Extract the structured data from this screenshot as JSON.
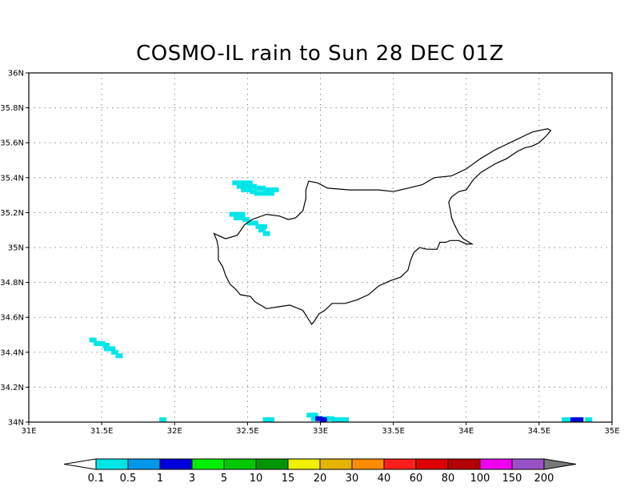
{
  "title": "COSMO-IL rain to Sun 28 DEC 01Z",
  "map": {
    "lon_range": [
      31,
      35
    ],
    "lat_range": [
      34,
      36
    ],
    "grid": true,
    "lon_ticks": [
      "31E",
      "31.5E",
      "32E",
      "32.5E",
      "33E",
      "33.5E",
      "34E",
      "34.5E",
      "35E"
    ],
    "lat_ticks": [
      "34N",
      "34.2N",
      "34.4N",
      "34.6N",
      "34.8N",
      "35N",
      "35.2N",
      "35.4N",
      "35.6N",
      "35.8N",
      "36N"
    ],
    "coastline": [
      [
        32.27,
        35.08
      ],
      [
        32.35,
        35.05
      ],
      [
        32.43,
        35.07
      ],
      [
        32.48,
        35.13
      ],
      [
        32.53,
        35.16
      ],
      [
        32.63,
        35.19
      ],
      [
        32.72,
        35.18
      ],
      [
        32.78,
        35.16
      ],
      [
        32.83,
        35.17
      ],
      [
        32.88,
        35.21
      ],
      [
        32.9,
        35.28
      ],
      [
        32.9,
        35.33
      ],
      [
        32.92,
        35.38
      ],
      [
        32.98,
        35.37
      ],
      [
        33.05,
        35.34
      ],
      [
        33.2,
        35.33
      ],
      [
        33.3,
        35.33
      ],
      [
        33.4,
        35.33
      ],
      [
        33.5,
        35.32
      ],
      [
        33.6,
        35.34
      ],
      [
        33.7,
        35.36
      ],
      [
        33.78,
        35.4
      ],
      [
        33.9,
        35.41
      ],
      [
        34.0,
        35.45
      ],
      [
        34.1,
        35.51
      ],
      [
        34.2,
        35.56
      ],
      [
        34.3,
        35.6
      ],
      [
        34.35,
        35.62
      ],
      [
        34.4,
        35.64
      ],
      [
        34.45,
        35.66
      ],
      [
        34.5,
        35.67
      ],
      [
        34.56,
        35.68
      ],
      [
        34.58,
        35.67
      ],
      [
        34.55,
        35.64
      ],
      [
        34.5,
        35.6
      ],
      [
        34.45,
        35.58
      ],
      [
        34.4,
        35.57
      ],
      [
        34.35,
        35.55
      ],
      [
        34.28,
        35.51
      ],
      [
        34.2,
        35.48
      ],
      [
        34.1,
        35.43
      ],
      [
        34.05,
        35.39
      ],
      [
        34.0,
        35.33
      ],
      [
        33.95,
        35.32
      ],
      [
        33.9,
        35.29
      ],
      [
        33.88,
        35.26
      ],
      [
        33.89,
        35.22
      ],
      [
        33.9,
        35.17
      ],
      [
        33.92,
        35.13
      ],
      [
        33.95,
        35.08
      ],
      [
        33.98,
        35.05
      ],
      [
        34.04,
        35.02
      ],
      [
        34.0,
        35.02
      ],
      [
        33.95,
        35.04
      ],
      [
        33.89,
        35.04
      ],
      [
        33.86,
        35.03
      ],
      [
        33.82,
        35.03
      ],
      [
        33.8,
        34.99
      ],
      [
        33.73,
        34.99
      ],
      [
        33.68,
        35.0
      ],
      [
        33.64,
        34.97
      ],
      [
        33.62,
        34.93
      ],
      [
        33.6,
        34.87
      ],
      [
        33.55,
        34.83
      ],
      [
        33.48,
        34.81
      ],
      [
        33.4,
        34.78
      ],
      [
        33.33,
        34.73
      ],
      [
        33.25,
        34.7
      ],
      [
        33.17,
        34.68
      ],
      [
        33.08,
        34.68
      ],
      [
        33.03,
        34.64
      ],
      [
        32.99,
        34.62
      ],
      [
        32.96,
        34.58
      ],
      [
        32.94,
        34.56
      ],
      [
        32.91,
        34.6
      ],
      [
        32.88,
        34.64
      ],
      [
        32.79,
        34.67
      ],
      [
        32.71,
        34.66
      ],
      [
        32.63,
        34.65
      ],
      [
        32.55,
        34.69
      ],
      [
        32.52,
        34.72
      ],
      [
        32.45,
        34.73
      ],
      [
        32.42,
        34.76
      ],
      [
        32.38,
        34.79
      ],
      [
        32.35,
        34.84
      ],
      [
        32.33,
        34.89
      ],
      [
        32.3,
        34.93
      ],
      [
        32.3,
        35.0
      ],
      [
        32.29,
        35.04
      ],
      [
        32.27,
        35.08
      ]
    ],
    "rain_cells": [
      [
        32.42,
        35.37
      ],
      [
        32.45,
        35.37
      ],
      [
        32.48,
        35.37
      ],
      [
        32.51,
        35.37
      ],
      [
        32.45,
        35.35
      ],
      [
        32.48,
        35.35
      ],
      [
        32.51,
        35.35
      ],
      [
        32.54,
        35.35
      ],
      [
        32.57,
        35.34
      ],
      [
        32.6,
        35.34
      ],
      [
        32.63,
        35.33
      ],
      [
        32.66,
        35.33
      ],
      [
        32.69,
        35.33
      ],
      [
        32.48,
        35.33
      ],
      [
        32.51,
        35.33
      ],
      [
        32.54,
        35.32
      ],
      [
        32.57,
        35.31
      ],
      [
        32.6,
        35.31
      ],
      [
        32.63,
        35.31
      ],
      [
        32.66,
        35.31
      ],
      [
        32.4,
        35.19
      ],
      [
        32.43,
        35.19
      ],
      [
        32.46,
        35.19
      ],
      [
        32.43,
        35.17
      ],
      [
        32.46,
        35.17
      ],
      [
        32.49,
        35.16
      ],
      [
        32.52,
        35.14
      ],
      [
        32.55,
        35.14
      ],
      [
        32.58,
        35.12
      ],
      [
        32.61,
        35.12
      ],
      [
        32.6,
        35.1
      ],
      [
        32.63,
        35.08
      ],
      [
        31.44,
        34.47
      ],
      [
        31.47,
        34.45
      ],
      [
        31.5,
        34.45
      ],
      [
        31.53,
        34.44
      ],
      [
        31.54,
        34.42
      ],
      [
        31.57,
        34.42
      ],
      [
        31.59,
        34.4
      ],
      [
        31.62,
        34.38
      ],
      [
        31.92,
        34.01
      ],
      [
        32.63,
        34.01
      ],
      [
        32.66,
        34.01
      ],
      [
        32.93,
        34.04
      ],
      [
        32.96,
        34.04
      ],
      [
        32.96,
        34.02
      ],
      [
        33.04,
        34.02
      ],
      [
        33.07,
        34.02
      ],
      [
        33.1,
        34.01
      ],
      [
        33.13,
        34.01
      ],
      [
        33.17,
        34.01
      ],
      [
        34.68,
        34.01
      ],
      [
        34.72,
        34.01
      ],
      [
        34.84,
        34.01
      ]
    ],
    "rain_heavy_cells": [
      [
        32.99,
        34.02
      ],
      [
        33.02,
        34.01
      ],
      [
        34.74,
        34.01
      ],
      [
        34.78,
        34.01
      ]
    ]
  },
  "colorbar": {
    "labels": [
      "0.1",
      "0.5",
      "1",
      "3",
      "5",
      "10",
      "15",
      "20",
      "30",
      "40",
      "60",
      "80",
      "100",
      "150",
      "200"
    ],
    "colors": [
      "#00e6e6",
      "#0099ea",
      "#0000dc",
      "#00f000",
      "#00c800",
      "#009600",
      "#f0f000",
      "#e6b400",
      "#ff8c00",
      "#ff1e1e",
      "#dc0000",
      "#b40000",
      "#f000f0",
      "#9b50c8"
    ],
    "under_color": "#ffffff",
    "over_color": "#787878"
  }
}
